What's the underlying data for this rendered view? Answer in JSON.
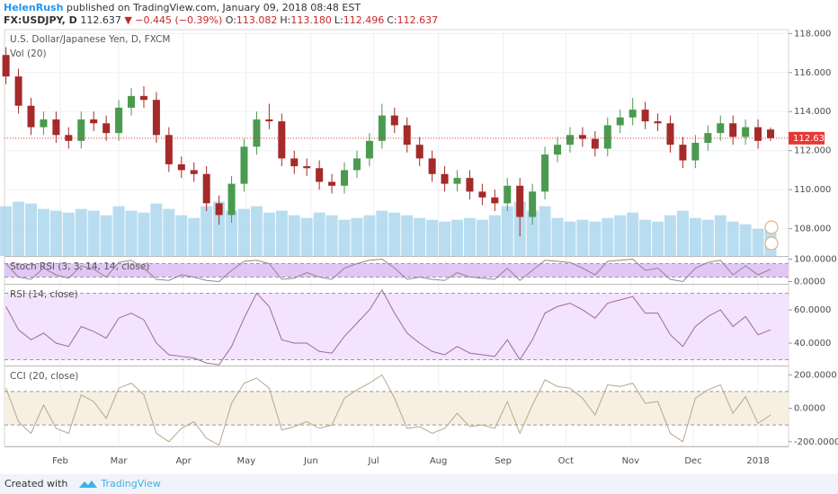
{
  "header": {
    "author": "HelenRush",
    "published": "published on TradingView.com, January 09, 2018 08:48 EST",
    "symbol": "FX:USDJPY, D",
    "price": "112.637",
    "arrow": "▼",
    "change": "−0.445 (−0.39%)",
    "ohlc": [
      {
        "label": "O:",
        "value": "113.082"
      },
      {
        "label": "H:",
        "value": "113.180"
      },
      {
        "label": "L:",
        "value": "112.496"
      },
      {
        "label": "C:",
        "value": "112.637"
      }
    ]
  },
  "footer": {
    "created": "Created with",
    "brand": "TradingView"
  },
  "chart_data": [
    {
      "type": "candlestick",
      "title": "U.S. Dollar/Japanese Yen, D, FXCM",
      "volume_label": "Vol (20)",
      "x": [
        5,
        11,
        17,
        23,
        29,
        35,
        41,
        47,
        53,
        59,
        65,
        71,
        77,
        83,
        89,
        95,
        101,
        107,
        113,
        119,
        125,
        131,
        137,
        143,
        149,
        155,
        161,
        167,
        173,
        179,
        185,
        191,
        197,
        203,
        209,
        215,
        221,
        227,
        233,
        239,
        245,
        251,
        257,
        263,
        269,
        275,
        281,
        287,
        293,
        299,
        305,
        311,
        317,
        323,
        329,
        335,
        341,
        347,
        353,
        359,
        365,
        371
      ],
      "open": [
        116.9,
        115.8,
        114.3,
        113.2,
        113.6,
        112.8,
        112.5,
        113.6,
        113.4,
        112.9,
        114.2,
        114.8,
        114.6,
        112.8,
        111.3,
        111.0,
        110.8,
        109.3,
        108.7,
        110.3,
        112.2,
        113.6,
        113.5,
        111.6,
        111.2,
        111.1,
        110.4,
        110.2,
        111.0,
        111.6,
        112.5,
        113.8,
        113.3,
        112.3,
        111.6,
        110.8,
        110.3,
        110.6,
        109.9,
        109.6,
        109.3,
        110.2,
        108.6,
        109.9,
        111.8,
        112.3,
        112.8,
        112.6,
        112.1,
        113.3,
        113.7,
        114.1,
        113.5,
        113.4,
        112.3,
        111.5,
        112.4,
        112.9,
        113.4,
        112.7,
        113.2,
        113.082
      ],
      "high": [
        117.3,
        116.2,
        114.7,
        114.0,
        114.0,
        113.2,
        114.0,
        114.0,
        113.8,
        114.6,
        115.2,
        115.3,
        115.0,
        113.2,
        111.7,
        111.4,
        111.2,
        109.7,
        110.7,
        112.6,
        114.0,
        114.4,
        113.9,
        112.0,
        111.6,
        111.5,
        110.8,
        111.4,
        112.0,
        112.9,
        114.4,
        114.2,
        113.7,
        112.7,
        112.0,
        111.2,
        111.0,
        111.0,
        110.3,
        110.0,
        110.6,
        110.6,
        110.3,
        112.2,
        112.7,
        113.2,
        113.2,
        113.0,
        113.7,
        114.1,
        114.7,
        114.5,
        113.9,
        113.8,
        112.7,
        112.8,
        113.3,
        113.8,
        113.8,
        113.6,
        113.6,
        113.18
      ],
      "low": [
        115.4,
        113.9,
        112.8,
        112.8,
        112.4,
        112.1,
        112.1,
        113.0,
        112.5,
        112.5,
        113.8,
        114.2,
        112.4,
        110.9,
        110.6,
        110.4,
        108.9,
        108.2,
        108.3,
        109.9,
        111.8,
        113.1,
        111.2,
        110.8,
        110.7,
        110.0,
        109.8,
        109.8,
        110.6,
        111.2,
        112.1,
        112.9,
        111.9,
        111.2,
        110.4,
        109.9,
        109.9,
        109.5,
        109.2,
        108.9,
        108.9,
        107.6,
        108.2,
        109.5,
        111.4,
        111.9,
        112.2,
        111.7,
        111.7,
        112.9,
        113.3,
        113.1,
        113.0,
        111.9,
        111.1,
        111.1,
        112.0,
        112.5,
        112.3,
        112.3,
        112.1,
        112.496
      ],
      "close": [
        115.8,
        114.3,
        113.2,
        113.6,
        112.8,
        112.5,
        113.6,
        113.4,
        112.9,
        114.2,
        114.8,
        114.6,
        112.8,
        111.3,
        111.0,
        110.8,
        109.3,
        108.7,
        110.3,
        112.2,
        113.6,
        113.5,
        111.6,
        111.2,
        111.1,
        110.4,
        110.2,
        111.0,
        111.6,
        112.5,
        113.8,
        113.3,
        112.3,
        111.6,
        110.8,
        110.3,
        110.6,
        109.9,
        109.6,
        109.3,
        110.2,
        108.6,
        109.9,
        111.8,
        112.3,
        112.8,
        112.6,
        112.1,
        113.3,
        113.7,
        114.1,
        113.5,
        113.4,
        112.3,
        111.5,
        112.4,
        112.9,
        113.4,
        112.7,
        113.2,
        112.5,
        112.637
      ],
      "volume": [
        55,
        60,
        58,
        52,
        50,
        48,
        52,
        50,
        45,
        55,
        50,
        48,
        58,
        52,
        45,
        42,
        55,
        60,
        50,
        52,
        55,
        48,
        50,
        45,
        42,
        48,
        45,
        40,
        42,
        45,
        50,
        48,
        45,
        42,
        40,
        38,
        40,
        42,
        40,
        45,
        55,
        60,
        50,
        55,
        42,
        38,
        40,
        38,
        42,
        45,
        48,
        40,
        38,
        45,
        50,
        42,
        40,
        45,
        38,
        35,
        30,
        35
      ],
      "vlim": [
        0,
        250
      ],
      "volume_color": "#a8d4ec",
      "up_color": "#4a9a4f",
      "down_color": "#a52a2a",
      "last_color": "#e53935",
      "xlim": [
        4.3,
        379.6
      ],
      "xticks": [
        {
          "value": 31,
          "label": "Feb"
        },
        {
          "value": 59,
          "label": "Mar"
        },
        {
          "value": 90,
          "label": "Apr"
        },
        {
          "value": 120,
          "label": "May"
        },
        {
          "value": 151,
          "label": "Jun"
        },
        {
          "value": 181,
          "label": "Jul"
        },
        {
          "value": 212,
          "label": "Aug"
        },
        {
          "value": 243,
          "label": "Sep"
        },
        {
          "value": 273,
          "label": "Oct"
        },
        {
          "value": 304,
          "label": "Nov"
        },
        {
          "value": 334,
          "label": "Dec"
        },
        {
          "value": 365,
          "label": "2018"
        }
      ],
      "ylim": [
        106.6,
        118.2
      ],
      "yticks": [
        {
          "value": 108,
          "label": "108.000"
        },
        {
          "value": 110,
          "label": "110.000"
        },
        {
          "value": 112,
          "label": "112.000"
        },
        {
          "value": 114,
          "label": "114.000"
        },
        {
          "value": 116,
          "label": "116.000"
        },
        {
          "value": 118,
          "label": "118.000"
        }
      ],
      "grid": true
    },
    {
      "type": "line",
      "title": "Stoch RSI (3, 3, 14, 14, close)",
      "color": "#8a8a8a",
      "band": [
        20,
        80
      ],
      "band_color": "#e2c6f6",
      "values": [
        80,
        20,
        10,
        60,
        30,
        15,
        70,
        55,
        20,
        85,
        95,
        60,
        10,
        5,
        30,
        20,
        5,
        0,
        50,
        90,
        95,
        80,
        10,
        15,
        40,
        20,
        10,
        60,
        80,
        95,
        100,
        60,
        10,
        20,
        10,
        5,
        40,
        20,
        15,
        10,
        60,
        5,
        50,
        95,
        90,
        85,
        60,
        30,
        90,
        95,
        100,
        50,
        60,
        10,
        0,
        60,
        85,
        95,
        30,
        70,
        30,
        55
      ],
      "ylim": [
        -10,
        110
      ],
      "yticks": [
        {
          "value": 0,
          "label": "0.0000"
        },
        {
          "value": 100,
          "label": "100.0000"
        }
      ]
    },
    {
      "type": "line",
      "title": "RSI (14, close)",
      "color": "#9c6b9c",
      "band": [
        30,
        70
      ],
      "band_color": "#f3e3fc",
      "values": [
        62,
        48,
        42,
        46,
        40,
        38,
        50,
        47,
        43,
        55,
        58,
        54,
        40,
        33,
        32,
        31,
        28,
        27,
        38,
        55,
        70,
        62,
        42,
        40,
        40,
        35,
        34,
        44,
        52,
        60,
        72,
        58,
        46,
        40,
        35,
        33,
        38,
        34,
        33,
        32,
        42,
        30,
        42,
        58,
        62,
        64,
        60,
        55,
        64,
        66,
        68,
        58,
        58,
        45,
        38,
        50,
        56,
        60,
        50,
        56,
        45,
        48
      ],
      "ylim": [
        26.5,
        75.1
      ],
      "yticks": [
        {
          "value": 40,
          "label": "40.0000"
        },
        {
          "value": 60,
          "label": "60.0000"
        }
      ]
    },
    {
      "type": "line",
      "title": "CCI (20, close)",
      "color": "#b8a88a",
      "band": [
        -100,
        100
      ],
      "band_color": "#f6efe2",
      "values": [
        120,
        -80,
        -150,
        20,
        -120,
        -150,
        80,
        40,
        -60,
        120,
        150,
        80,
        -150,
        -200,
        -120,
        -80,
        -180,
        -220,
        30,
        150,
        180,
        120,
        -130,
        -110,
        -80,
        -120,
        -100,
        60,
        110,
        150,
        200,
        60,
        -120,
        -110,
        -150,
        -120,
        -30,
        -110,
        -100,
        -120,
        40,
        -150,
        20,
        170,
        130,
        120,
        60,
        -40,
        140,
        130,
        150,
        30,
        40,
        -150,
        -200,
        60,
        110,
        140,
        -30,
        70,
        -90,
        -40
      ],
      "ylim": [
        -228,
        250
      ],
      "yticks": [
        {
          "value": -200,
          "label": "-200.0000"
        },
        {
          "value": 0,
          "label": "0.0000"
        },
        {
          "value": 200,
          "label": "200.0000"
        }
      ]
    }
  ]
}
